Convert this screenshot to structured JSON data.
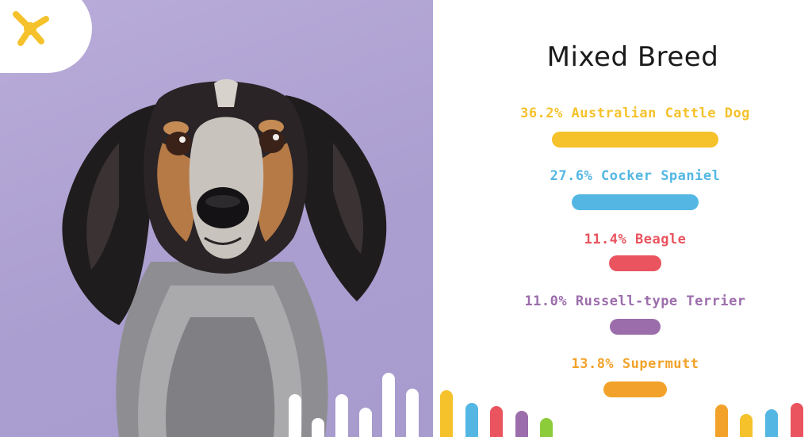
{
  "panel": {
    "title": "Mixed Breed",
    "breeds": [
      {
        "percent": 36.2,
        "label": "36.2% Australian Cattle Dog",
        "color": "#f5c22c"
      },
      {
        "percent": 27.6,
        "label": "27.6% Cocker Spaniel",
        "color": "#54b7e3"
      },
      {
        "percent": 11.4,
        "label": "11.4% Beagle",
        "color": "#e9545f"
      },
      {
        "percent": 11.0,
        "label": "11.0% Russell-type Terrier",
        "color": "#9c6dab"
      },
      {
        "percent": 13.8,
        "label": "13.8% Supermutt",
        "color": "#f2a22a"
      }
    ]
  },
  "colors": {
    "background_left": "#ad9fd2",
    "logo_yellow": "#f5c22c"
  },
  "icons": {
    "logo": "paw-network-logo-icon"
  }
}
